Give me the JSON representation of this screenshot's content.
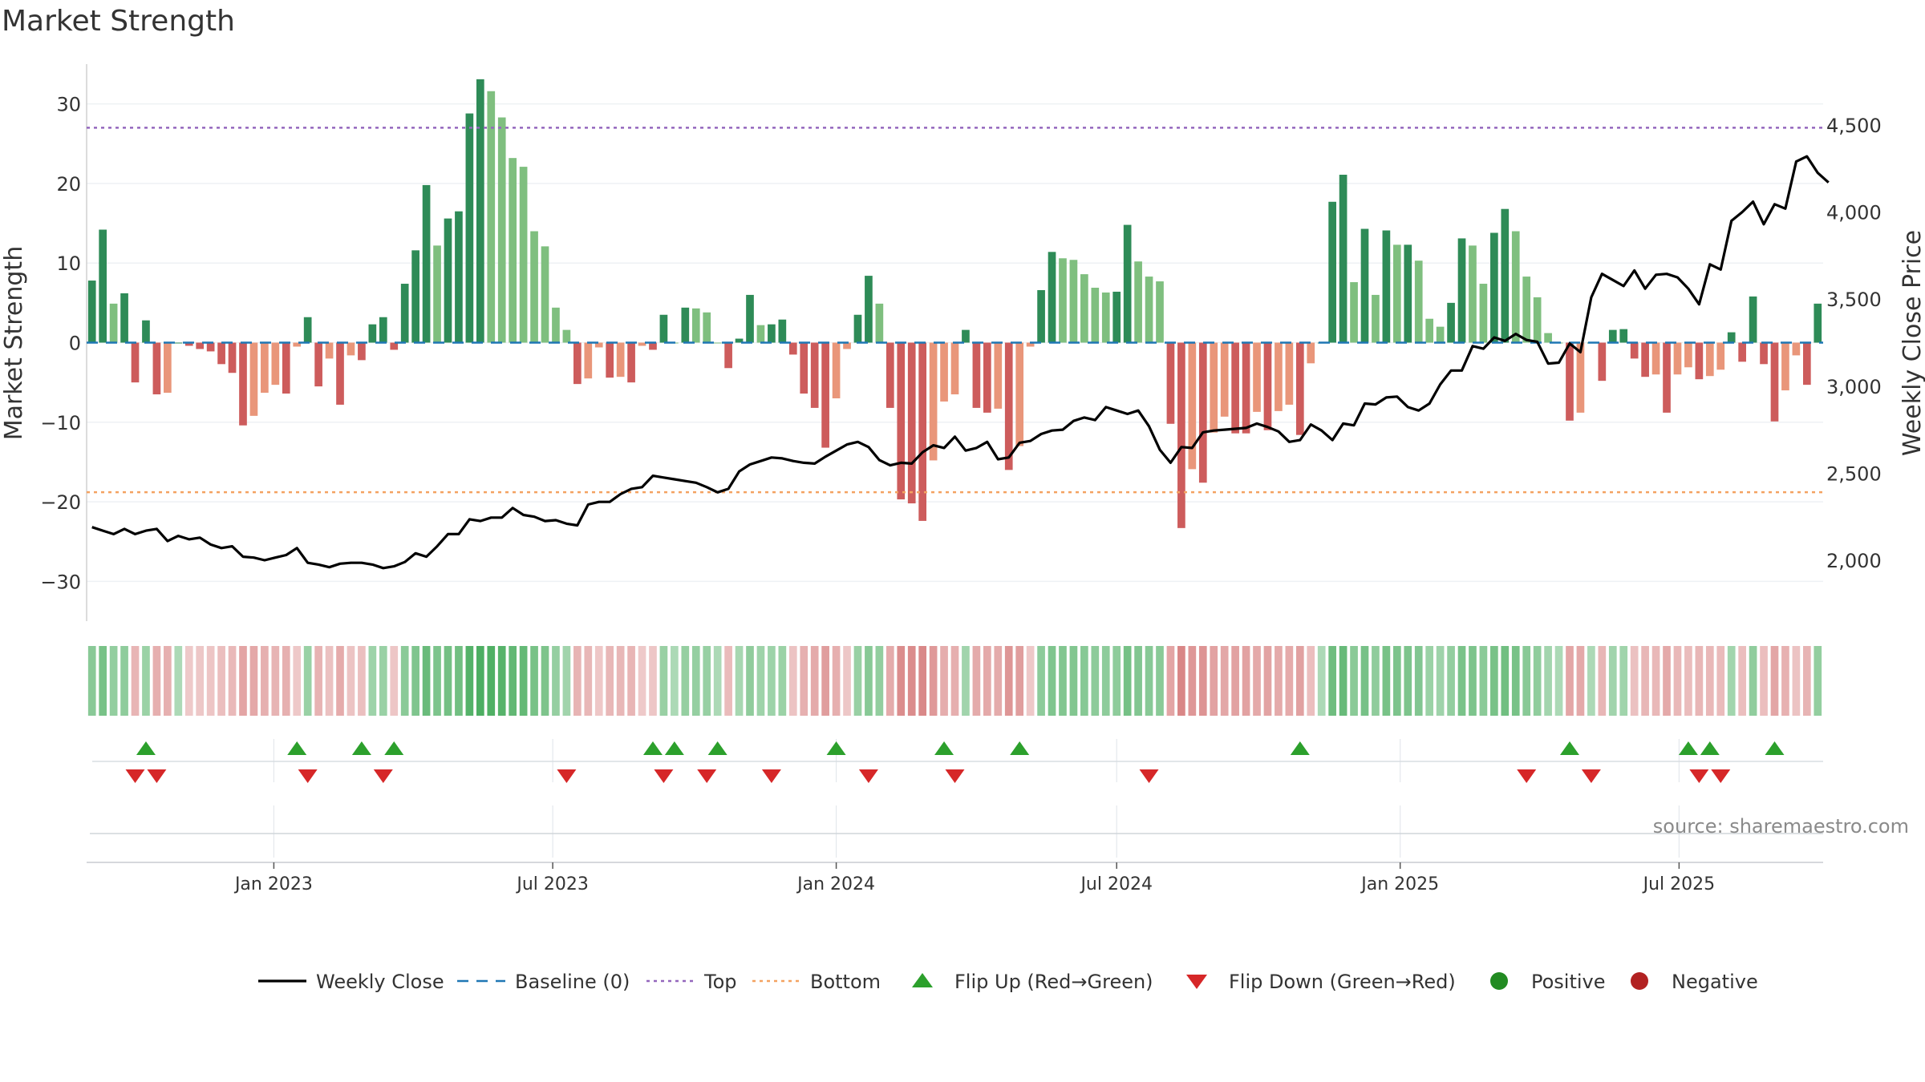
{
  "chart_data": {
    "title": "Market Strength",
    "type": "bar",
    "start_date": "2022-09-05",
    "interval_days": 7,
    "strength_values": [
      7.8,
      14.2,
      4.9,
      6.2,
      -5,
      2.8,
      -6.5,
      -6.3,
      0,
      -0.4,
      -0.8,
      -1.1,
      -2.7,
      -3.8,
      -10.4,
      -9.2,
      -6.3,
      -5.3,
      -6.4,
      -0.5,
      3.2,
      -5.5,
      -2,
      -7.8,
      -1.6,
      -2.2,
      2.3,
      3.2,
      -0.9,
      7.4,
      11.6,
      19.8,
      12.2,
      15.6,
      16.5,
      28.8,
      33.1,
      31.6,
      28.3,
      23.2,
      22.1,
      14,
      12.1,
      4.4,
      1.6,
      -5.2,
      -4.5,
      -0.6,
      -4.4,
      -4.3,
      -5,
      -0.4,
      -0.9,
      3.5,
      0,
      4.4,
      4.3,
      3.8,
      0,
      -3.2,
      0.5,
      6,
      2.2,
      2.3,
      2.9,
      -1.5,
      -6.4,
      -8.2,
      -13.2,
      -7,
      -0.8,
      3.5,
      8.4,
      4.9,
      -8.2,
      -19.7,
      -20.2,
      -22.4,
      -14.8,
      -7.4,
      -6.5,
      1.6,
      -8.2,
      -8.8,
      -8.3,
      -16,
      -13,
      -0.5,
      6.6,
      11.4,
      10.6,
      10.4,
      8.6,
      6.9,
      6.3,
      6.4,
      14.8,
      10.2,
      8.3,
      7.7,
      -10.2,
      -23.3,
      -15.9,
      -17.6,
      -11.3,
      -9.3,
      -11.4,
      -11.4,
      -8.7,
      -11,
      -8.6,
      -7.8,
      -11.6,
      -2.6,
      0,
      17.7,
      21.1,
      7.6,
      14.3,
      6,
      14.1,
      12.3,
      12.3,
      10.3,
      3,
      2,
      5,
      13.1,
      12.2,
      7.4,
      13.8,
      16.8,
      14,
      8.3,
      5.7,
      1.2,
      0,
      -9.8,
      -8.8,
      0,
      -4.8,
      1.6,
      1.7,
      -2,
      -4.3,
      -4,
      -8.8,
      -4,
      -3.1,
      -4.6,
      -4.2,
      -3.4,
      1.3,
      -2.4,
      5.8,
      -2.7,
      -9.9,
      -6,
      -1.6,
      -5.3,
      4.9
    ],
    "weekly_close": [
      2190,
      2170,
      2150,
      2180,
      2150,
      2170,
      2180,
      2110,
      2140,
      2120,
      2130,
      2090,
      2070,
      2080,
      2020,
      2015,
      2000,
      2015,
      2030,
      2070,
      1985,
      1975,
      1960,
      1980,
      1985,
      1985,
      1975,
      1955,
      1965,
      1990,
      2040,
      2020,
      2080,
      2150,
      2150,
      2235,
      2225,
      2245,
      2245,
      2300,
      2260,
      2250,
      2225,
      2230,
      2210,
      2200,
      2320,
      2335,
      2335,
      2380,
      2410,
      2420,
      2485,
      2475,
      2465,
      2455,
      2445,
      2420,
      2390,
      2410,
      2510,
      2550,
      2570,
      2590,
      2585,
      2570,
      2560,
      2555,
      2595,
      2630,
      2665,
      2680,
      2650,
      2575,
      2545,
      2560,
      2555,
      2620,
      2660,
      2645,
      2710,
      2630,
      2645,
      2680,
      2580,
      2590,
      2675,
      2685,
      2725,
      2745,
      2750,
      2800,
      2820,
      2805,
      2880,
      2860,
      2840,
      2860,
      2770,
      2635,
      2560,
      2650,
      2645,
      2735,
      2745,
      2750,
      2755,
      2760,
      2785,
      2765,
      2740,
      2680,
      2690,
      2780,
      2745,
      2690,
      2785,
      2775,
      2900,
      2895,
      2935,
      2940,
      2880,
      2860,
      2900,
      3010,
      3090,
      3090,
      3230,
      3215,
      3280,
      3260,
      3300,
      3265,
      3255,
      3130,
      3135,
      3245,
      3195,
      3510,
      3645,
      3610,
      3575,
      3665,
      3560,
      3640,
      3645,
      3625,
      3560,
      3470,
      3700,
      3670,
      3950,
      4000,
      4060,
      3930,
      4045,
      4020,
      4290,
      4320,
      4225,
      4170
    ],
    "flip_up_idx": [
      5,
      19,
      25,
      28,
      52,
      54,
      58,
      69,
      79,
      86,
      112,
      137,
      148,
      150,
      156
    ],
    "flip_down_idx": [
      4,
      6,
      20,
      27,
      44,
      53,
      57,
      63,
      72,
      80,
      98,
      133,
      139,
      149,
      151
    ],
    "top_line": 27,
    "bottom_line": -18.8,
    "ylim_left": [
      -35,
      35
    ],
    "left_ticks": [
      30,
      20,
      10,
      0,
      -10,
      -20,
      -30
    ],
    "left_tick_labels": [
      "30",
      "20",
      "10",
      "0",
      "−10",
      "−20",
      "−30"
    ],
    "ylim_right": [
      1650,
      4850
    ],
    "right_ticks": [
      4500,
      4000,
      3500,
      3000,
      2500,
      2000
    ],
    "right_tick_labels": [
      "4,500",
      "4,000",
      "3,500",
      "3,000",
      "2,500",
      "2,000"
    ],
    "x_ticks": [
      "2023-01-01",
      "2023-07-01",
      "2024-01-01",
      "2024-07-01",
      "2025-01-01",
      "2025-07-01"
    ],
    "x_tick_labels": [
      "Jan 2023",
      "Jul 2023",
      "Jan 2024",
      "Jul 2024",
      "Jan 2025",
      "Jul 2025"
    ],
    "ylabel_left": "Market Strength",
    "ylabel_right": "Weekly Close Price",
    "source": "source: sharemaestro.com",
    "legend": [
      {
        "label": "Weekly Close",
        "kind": "line",
        "color": "#000000"
      },
      {
        "label": "Baseline (0)",
        "kind": "dash",
        "color": "#1f77b4"
      },
      {
        "label": "Top",
        "kind": "dot",
        "color": "#9467bd"
      },
      {
        "label": "Bottom",
        "kind": "dot",
        "color": "#f4a261"
      },
      {
        "label": "Flip Up (Red→Green)",
        "kind": "tri-up",
        "color": "#2ca02c"
      },
      {
        "label": "Flip Down (Green→Red)",
        "kind": "tri-down",
        "color": "#d62728"
      },
      {
        "label": "Positive",
        "kind": "circle",
        "color": "#228b22"
      },
      {
        "label": "Negative",
        "kind": "circle",
        "color": "#b22222"
      }
    ],
    "colors": {
      "pos_strong": "#2e8b57",
      "pos_fading": "#7fbf7f",
      "neg_strong": "#cd5c5c",
      "neg_fading": "#e9967a",
      "top": "#9467bd",
      "bottom": "#f4a261",
      "baseline": "#1f77b4",
      "flip_up": "#2ca02c",
      "flip_down": "#d62728",
      "close": "#000000"
    }
  }
}
